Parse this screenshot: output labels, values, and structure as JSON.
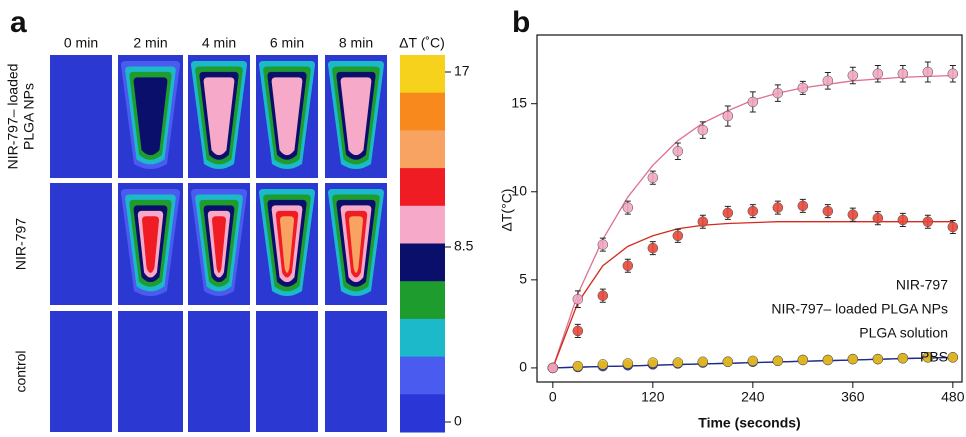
{
  "chart_data": [
    {
      "type": "thermal-grid",
      "panel_label": "a",
      "columns": [
        "0 min",
        "2 min",
        "4 min",
        "6 min",
        "8 min"
      ],
      "rows": [
        [
          "NIR-797– loaded",
          "PLGA NPs"
        ],
        [
          "NIR-797"
        ],
        [
          "control"
        ]
      ],
      "background": "#2b38d2",
      "colorbar": {
        "title": "ΔT (˚C)",
        "lim": [
          0,
          17
        ],
        "ticks": [
          17,
          8.5,
          0
        ],
        "colors": [
          "#f6d21c",
          "#f7891d",
          "#f9a363",
          "#ef1c24",
          "#f6a9c9",
          "#0b0f6c",
          "#1e9c2d",
          "#1bb9c9",
          "#4a5bf0",
          "#2a36d6"
        ]
      }
    },
    {
      "type": "scatter",
      "panel_label": "b",
      "x_label": "Time (seconds)",
      "y_label": "ΔT(°C)",
      "x": [
        0,
        30,
        60,
        90,
        120,
        150,
        180,
        210,
        240,
        270,
        300,
        330,
        360,
        390,
        420,
        450,
        480
      ],
      "xlim": [
        -19,
        491
      ],
      "xticks": [
        0,
        120,
        240,
        360,
        480
      ],
      "ylim": [
        -0.8,
        18.9
      ],
      "yticks": [
        0,
        5,
        10,
        15
      ],
      "legend": "lower right",
      "series": [
        {
          "name": "NIR-797",
          "color": "#f3a6c4",
          "fit_color": "#e0708f",
          "values": [
            0,
            3.9,
            7.0,
            9.1,
            10.8,
            12.3,
            13.5,
            14.3,
            15.1,
            15.6,
            15.9,
            16.3,
            16.6,
            16.7,
            16.7,
            16.8,
            16.7
          ],
          "errors": [
            0,
            0.3,
            0.2,
            0.2,
            0.2,
            0.3,
            0.3,
            0.4,
            0.4,
            0.3,
            0.2,
            0.3,
            0.3,
            0.3,
            0.3,
            0.4,
            0.3
          ],
          "fit": [
            0,
            4.2,
            7.3,
            9.7,
            11.5,
            12.9,
            13.9,
            14.6,
            15.2,
            15.6,
            15.9,
            16.1,
            16.3,
            16.4,
            16.5,
            16.55,
            16.6
          ]
        },
        {
          "name": "NIR-797– loaded PLGA NPs",
          "color": "#e8483a",
          "fit_color": "#d42a1c",
          "values": [
            0,
            2.1,
            4.1,
            5.8,
            6.8,
            7.5,
            8.3,
            8.8,
            8.9,
            9.1,
            9.2,
            8.9,
            8.7,
            8.5,
            8.4,
            8.3,
            8.0
          ],
          "errors": [
            0,
            0.2,
            0.2,
            0.2,
            0.2,
            0.2,
            0.2,
            0.2,
            0.2,
            0.2,
            0.2,
            0.2,
            0.2,
            0.2,
            0.2,
            0.2,
            0.2
          ],
          "fit": [
            0,
            3.7,
            5.8,
            6.9,
            7.5,
            7.9,
            8.1,
            8.2,
            8.25,
            8.3,
            8.3,
            8.3,
            8.3,
            8.3,
            8.3,
            8.3,
            8.3
          ]
        },
        {
          "name": "PLGA solution",
          "color": "#f2c21a",
          "fit_color": "#3a4a20",
          "values": [
            0,
            0.1,
            0.2,
            0.25,
            0.3,
            0.3,
            0.35,
            0.35,
            0.4,
            0.4,
            0.45,
            0.45,
            0.5,
            0.5,
            0.55,
            0.6,
            0.6
          ],
          "fit": [
            0,
            0.04,
            0.08,
            0.11,
            0.15,
            0.19,
            0.23,
            0.26,
            0.3,
            0.34,
            0.38,
            0.41,
            0.45,
            0.49,
            0.53,
            0.56,
            0.6
          ]
        },
        {
          "name": "PBS",
          "color": "#1a2a9c",
          "fit_color": "#1a2a9c",
          "values": [
            0,
            0.05,
            0.1,
            0.15,
            0.2,
            0.25,
            0.3,
            0.35,
            0.35,
            0.4,
            0.45,
            0.45,
            0.5,
            0.5,
            0.55,
            0.6,
            0.6
          ],
          "fit": [
            0,
            0.04,
            0.08,
            0.11,
            0.15,
            0.19,
            0.23,
            0.26,
            0.3,
            0.34,
            0.38,
            0.41,
            0.45,
            0.49,
            0.53,
            0.56,
            0.6
          ]
        }
      ]
    }
  ]
}
